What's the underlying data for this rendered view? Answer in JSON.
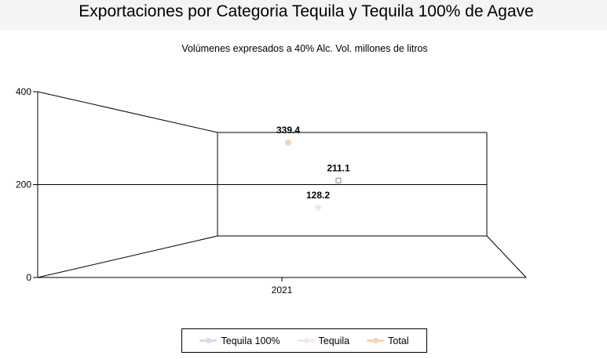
{
  "chart_data": {
    "type": "scatter",
    "title": "Exportaciones por Categoria Tequila y Tequila 100% de Agave",
    "subtitle": "Volúmenes expresados a 40% Alc. Vol. millones de litros",
    "categories": [
      "2021"
    ],
    "ylim": [
      0,
      400
    ],
    "yticks": [
      "0",
      "200",
      "400"
    ],
    "grid": true,
    "legend_position": "bottom",
    "three_d": true,
    "series": [
      {
        "name": "Tequila 100%",
        "values": [
          211.1
        ],
        "label": "211.1",
        "color": "#d8d8f2"
      },
      {
        "name": "Tequila",
        "values": [
          128.2
        ],
        "label": "128.2",
        "color": "#f7e4ea"
      },
      {
        "name": "Total",
        "values": [
          339.4
        ],
        "label": "339.4",
        "color": "#f3d3b4"
      }
    ]
  }
}
